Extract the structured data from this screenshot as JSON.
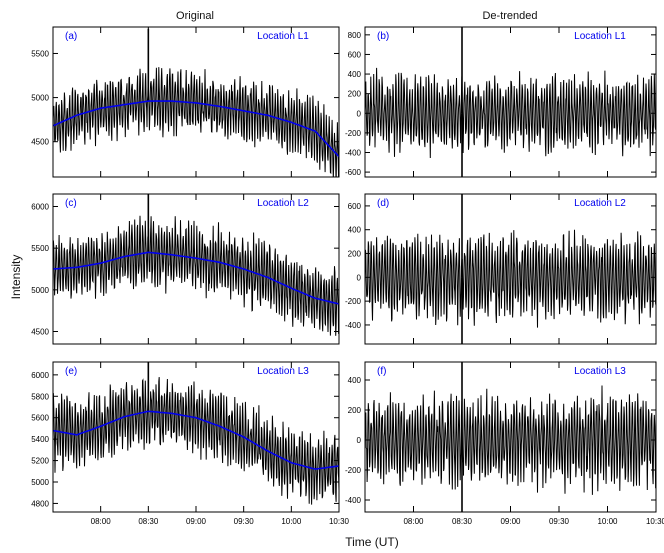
{
  "column_titles": {
    "left": "Original",
    "right": "De-trended"
  },
  "figure_labels": {
    "ylabel": "Intensity",
    "xlabel": "Time (UT)"
  },
  "colors": {
    "signal": "#000000",
    "trend": "#0000ee",
    "panel_label": "#0000ee"
  },
  "chart_data": [
    {
      "type": "line",
      "panel_label": "(a)",
      "location": "Location L1",
      "xticks": [
        "08:00",
        "08:30",
        "09:00",
        "09:30",
        "10:00",
        "10:30"
      ],
      "xlim_hours": [
        7.5,
        10.5
      ],
      "ylim": [
        4100,
        5800
      ],
      "yticks": [
        4500,
        5000,
        5500
      ],
      "signal": {
        "base": 4820,
        "amplitude": 330,
        "spikes": [
          [
            8.5,
            5780
          ]
        ]
      },
      "series": [
        {
          "x_hours": [
            7.5,
            7.75,
            8.0,
            8.25,
            8.5,
            8.75,
            9.0,
            9.25,
            9.5,
            9.75,
            10.0,
            10.25,
            10.5
          ],
          "values": [
            4680,
            4800,
            4880,
            4920,
            4960,
            4960,
            4940,
            4900,
            4850,
            4800,
            4720,
            4620,
            4330
          ]
        }
      ]
    },
    {
      "type": "line",
      "panel_label": "(b)",
      "location": "Location L1",
      "xticks": [
        "08:00",
        "08:30",
        "09:00",
        "09:30",
        "10:00",
        "10:30"
      ],
      "xlim_hours": [
        7.5,
        10.5
      ],
      "ylim": [
        -650,
        880
      ],
      "yticks": [
        -600,
        -400,
        -200,
        0,
        200,
        400,
        600,
        800
      ],
      "signal": {
        "base": 0,
        "amplitude": 350,
        "spikes": [
          [
            8.5,
            -650
          ],
          [
            8.5,
            880
          ]
        ]
      }
    },
    {
      "type": "line",
      "panel_label": "(c)",
      "location": "Location L2",
      "xticks": [
        "08:00",
        "08:30",
        "09:00",
        "09:30",
        "10:00",
        "10:30"
      ],
      "xlim_hours": [
        7.5,
        10.5
      ],
      "ylim": [
        4350,
        6150
      ],
      "yticks": [
        4500,
        5000,
        5500,
        6000
      ],
      "signal": {
        "base": 5250,
        "amplitude": 380,
        "spikes": [
          [
            8.5,
            6150
          ]
        ]
      },
      "series": [
        {
          "x_hours": [
            7.5,
            7.75,
            8.0,
            8.25,
            8.5,
            8.75,
            9.0,
            9.25,
            9.5,
            9.75,
            10.0,
            10.25,
            10.5
          ],
          "values": [
            5250,
            5270,
            5320,
            5400,
            5450,
            5420,
            5380,
            5330,
            5250,
            5150,
            5020,
            4900,
            4830
          ]
        }
      ]
    },
    {
      "type": "line",
      "panel_label": "(d)",
      "location": "Location L2",
      "xticks": [
        "08:00",
        "08:30",
        "09:00",
        "09:30",
        "10:00",
        "10:30"
      ],
      "xlim_hours": [
        7.5,
        10.5
      ],
      "ylim": [
        -560,
        700
      ],
      "yticks": [
        -400,
        -200,
        0,
        200,
        400,
        600
      ],
      "signal": {
        "base": 0,
        "amplitude": 330,
        "spikes": [
          [
            8.5,
            700
          ],
          [
            8.5,
            -560
          ]
        ]
      }
    },
    {
      "type": "line",
      "panel_label": "(e)",
      "location": "Location L3",
      "xticks": [
        "08:00",
        "08:30",
        "09:00",
        "09:30",
        "10:00",
        "10:30"
      ],
      "xlim_hours": [
        7.5,
        10.5
      ],
      "ylim": [
        4720,
        6120
      ],
      "yticks": [
        4800,
        5000,
        5200,
        5400,
        5600,
        5800,
        6000
      ],
      "signal": {
        "base": 5450,
        "amplitude": 300,
        "spikes": [
          [
            8.5,
            6120
          ]
        ]
      },
      "series": [
        {
          "x_hours": [
            7.5,
            7.75,
            8.0,
            8.25,
            8.5,
            8.75,
            9.0,
            9.25,
            9.5,
            9.75,
            10.0,
            10.25,
            10.5
          ],
          "values": [
            5480,
            5440,
            5520,
            5610,
            5660,
            5640,
            5600,
            5520,
            5420,
            5290,
            5180,
            5120,
            5150
          ]
        }
      ]
    },
    {
      "type": "line",
      "panel_label": "(f)",
      "location": "Location L3",
      "xticks": [
        "08:00",
        "08:30",
        "09:00",
        "09:30",
        "10:00",
        "10:30"
      ],
      "xlim_hours": [
        7.5,
        10.5
      ],
      "ylim": [
        -480,
        520
      ],
      "yticks": [
        -400,
        -200,
        0,
        200,
        400
      ],
      "signal": {
        "base": 0,
        "amplitude": 280,
        "spikes": [
          [
            8.5,
            520
          ],
          [
            8.5,
            -480
          ]
        ]
      }
    }
  ]
}
